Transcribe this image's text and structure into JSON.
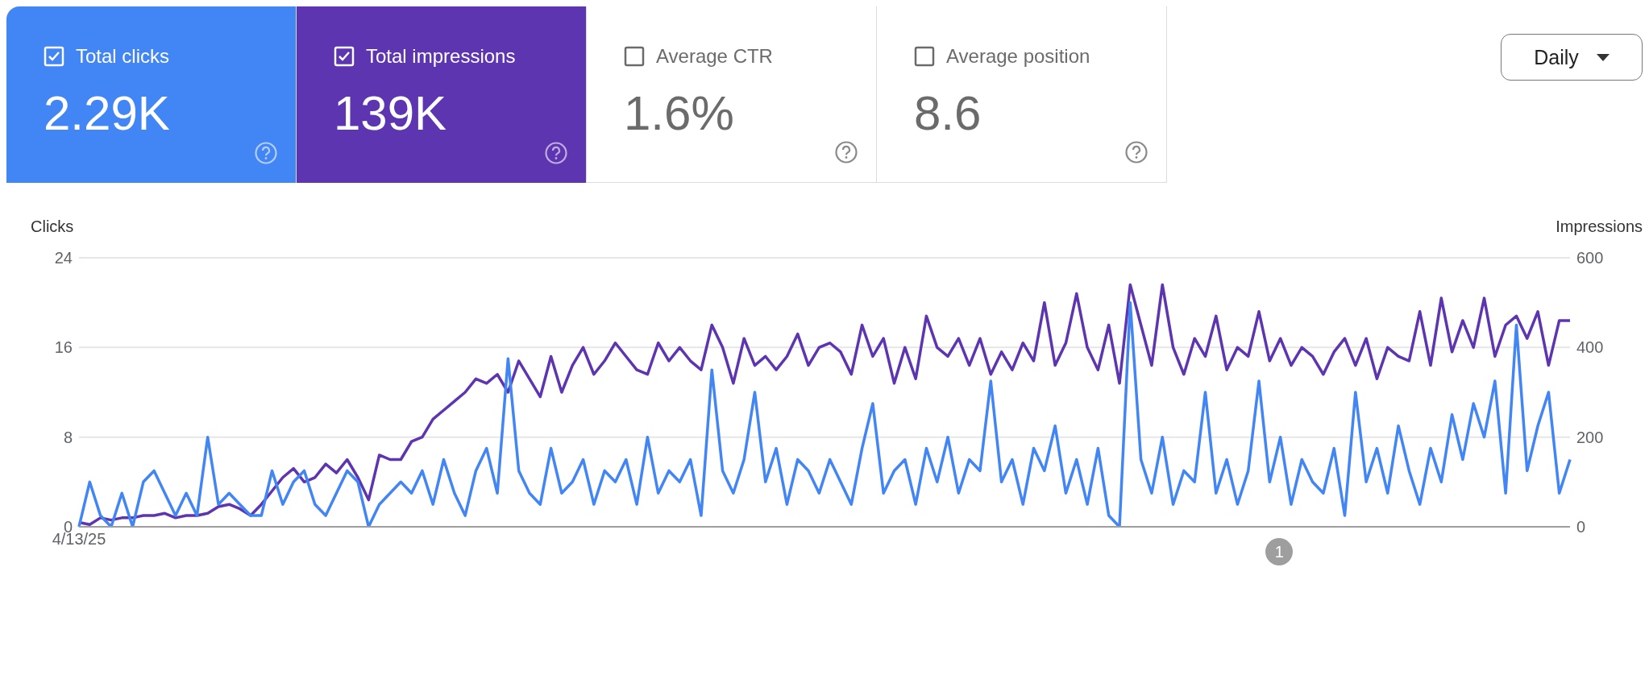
{
  "chart_data": [
    {
      "type": "other",
      "annotations": [
        "Total clicks",
        "2.29K",
        "Total impressions",
        "139K",
        "Average CTR",
        "1.6%",
        "Average position",
        "8.6",
        "Daily"
      ]
    },
    {
      "type": "line",
      "ylabel": "Clicks",
      "y2label": "Impressions",
      "ylim": [
        0,
        24
      ],
      "yticks": [
        0,
        8,
        16,
        24
      ],
      "y2lim": [
        0,
        600
      ],
      "y2ticks": [
        0,
        200,
        400,
        600
      ],
      "grid": "y",
      "annotations": [
        "1"
      ],
      "categories": [
        "4/13/25",
        null,
        null,
        null,
        null,
        null,
        null,
        null,
        null,
        null,
        null,
        null,
        null,
        null,
        null,
        null,
        null,
        null,
        null,
        null,
        null,
        null,
        null,
        null,
        null,
        null,
        null,
        null,
        null,
        null,
        null,
        null,
        null,
        null,
        null,
        null,
        null,
        null,
        null,
        null,
        null,
        null,
        null,
        null,
        null,
        null,
        null,
        null,
        null,
        null,
        null,
        null,
        null,
        null,
        null,
        null,
        null,
        null,
        null,
        null,
        null,
        null,
        null,
        null,
        null,
        null,
        null,
        null,
        null,
        null,
        null,
        null,
        null,
        null,
        null,
        null,
        null,
        null,
        null,
        null,
        null,
        null,
        null,
        null,
        null,
        null,
        null,
        null,
        null,
        null,
        null,
        null,
        null,
        null,
        null,
        null,
        null,
        null,
        null,
        null,
        null,
        null,
        null,
        null,
        null,
        null,
        null,
        null,
        null,
        null,
        null,
        null,
        null,
        null,
        null,
        null,
        null,
        null,
        null,
        null,
        null,
        null,
        null,
        null,
        null,
        null,
        null,
        null,
        null,
        null,
        null,
        null,
        null,
        null,
        null,
        null,
        null,
        null,
        null,
        null
      ],
      "series": [
        {
          "color": "#5e35b1",
          "axis": "y2",
          "values": [
            10,
            5,
            20,
            15,
            20,
            20,
            25,
            25,
            30,
            20,
            25,
            25,
            30,
            45,
            50,
            40,
            25,
            50,
            80,
            110,
            130,
            100,
            110,
            140,
            120,
            150,
            110,
            60,
            160,
            150,
            150,
            190,
            200,
            240,
            260,
            280,
            300,
            330,
            320,
            340,
            300,
            370,
            330,
            290,
            380,
            300,
            360,
            400,
            340,
            370,
            410,
            380,
            350,
            340,
            410,
            370,
            400,
            370,
            350,
            450,
            400,
            320,
            420,
            360,
            380,
            350,
            380,
            430,
            360,
            400,
            410,
            390,
            340,
            450,
            380,
            420,
            320,
            400,
            330,
            470,
            400,
            380,
            420,
            360,
            420,
            340,
            390,
            350,
            410,
            370,
            500,
            360,
            410,
            520,
            400,
            350,
            450,
            320,
            540,
            450,
            360,
            540,
            400,
            340,
            420,
            380,
            470,
            350,
            400,
            380,
            480,
            370,
            420,
            360,
            400,
            380,
            340,
            390,
            420,
            360,
            420,
            330,
            400,
            380,
            370,
            480,
            360,
            510,
            390,
            460,
            400,
            510,
            380,
            450,
            470,
            420,
            480,
            360,
            460,
            460
          ]
        },
        {
          "color": "#4285f4",
          "values": [
            0,
            4,
            1,
            0,
            3,
            0,
            4,
            5,
            3,
            1,
            3,
            1,
            8,
            2,
            3,
            2,
            1,
            1,
            5,
            2,
            4,
            5,
            2,
            1,
            3,
            5,
            4,
            0,
            2,
            3,
            4,
            3,
            5,
            2,
            6,
            3,
            1,
            5,
            7,
            3,
            15,
            5,
            3,
            2,
            7,
            3,
            4,
            6,
            2,
            5,
            4,
            6,
            2,
            8,
            3,
            5,
            4,
            6,
            1,
            14,
            5,
            3,
            6,
            12,
            4,
            7,
            2,
            6,
            5,
            3,
            6,
            4,
            2,
            7,
            11,
            3,
            5,
            6,
            2,
            7,
            4,
            8,
            3,
            6,
            5,
            13,
            4,
            6,
            2,
            7,
            5,
            9,
            3,
            6,
            2,
            7,
            1,
            0,
            20,
            6,
            3,
            8,
            2,
            5,
            4,
            12,
            3,
            6,
            2,
            5,
            13,
            4,
            8,
            2,
            6,
            4,
            3,
            7,
            1,
            12,
            4,
            7,
            3,
            9,
            5,
            2,
            7,
            4,
            10,
            6,
            11,
            8,
            13,
            3,
            18,
            5,
            9,
            12,
            3,
            6
          ]
        }
      ]
    }
  ]
}
